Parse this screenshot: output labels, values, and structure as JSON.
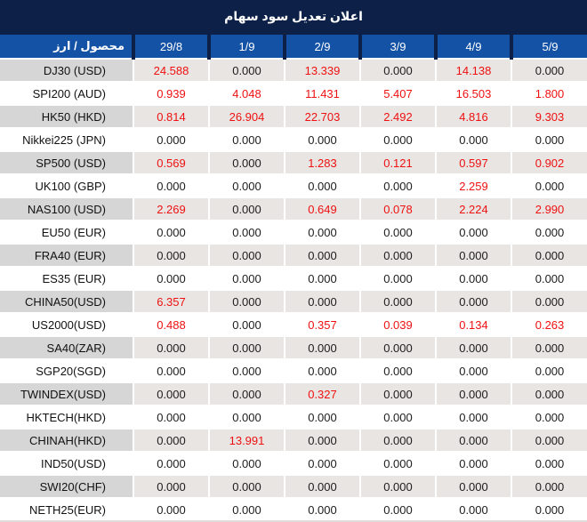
{
  "title": "اعلان تعديل سود سهام",
  "table": {
    "label_header": "محصول / ارز",
    "date_columns": [
      "29/8",
      "1/9",
      "2/9",
      "3/9",
      "4/9",
      "5/9"
    ],
    "value_color_rule": "non-zero values are red, zero values are black",
    "rows": [
      {
        "label": "DJ30 (USD)",
        "values": [
          "24.588",
          "0.000",
          "13.339",
          "0.000",
          "14.138",
          "0.000"
        ]
      },
      {
        "label": "SPI200 (AUD)",
        "values": [
          "0.939",
          "4.048",
          "11.431",
          "5.407",
          "16.503",
          "1.800"
        ]
      },
      {
        "label": "HK50 (HKD)",
        "values": [
          "0.814",
          "26.904",
          "22.703",
          "2.492",
          "4.816",
          "9.303"
        ]
      },
      {
        "label": "Nikkei225 (JPN)",
        "values": [
          "0.000",
          "0.000",
          "0.000",
          "0.000",
          "0.000",
          "0.000"
        ]
      },
      {
        "label": "SP500 (USD)",
        "values": [
          "0.569",
          "0.000",
          "1.283",
          "0.121",
          "0.597",
          "0.902"
        ]
      },
      {
        "label": "UK100 (GBP)",
        "values": [
          "0.000",
          "0.000",
          "0.000",
          "0.000",
          "2.259",
          "0.000"
        ]
      },
      {
        "label": "NAS100 (USD)",
        "values": [
          "2.269",
          "0.000",
          "0.649",
          "0.078",
          "2.224",
          "2.990"
        ]
      },
      {
        "label": "EU50 (EUR)",
        "values": [
          "0.000",
          "0.000",
          "0.000",
          "0.000",
          "0.000",
          "0.000"
        ]
      },
      {
        "label": "FRA40 (EUR)",
        "values": [
          "0.000",
          "0.000",
          "0.000",
          "0.000",
          "0.000",
          "0.000"
        ]
      },
      {
        "label": "ES35 (EUR)",
        "values": [
          "0.000",
          "0.000",
          "0.000",
          "0.000",
          "0.000",
          "0.000"
        ]
      },
      {
        "label": "CHINA50(USD)",
        "values": [
          "6.357",
          "0.000",
          "0.000",
          "0.000",
          "0.000",
          "0.000"
        ]
      },
      {
        "label": "US2000(USD)",
        "values": [
          "0.488",
          "0.000",
          "0.357",
          "0.039",
          "0.134",
          "0.263"
        ]
      },
      {
        "label": "SA40(ZAR)",
        "values": [
          "0.000",
          "0.000",
          "0.000",
          "0.000",
          "0.000",
          "0.000"
        ]
      },
      {
        "label": "SGP20(SGD)",
        "values": [
          "0.000",
          "0.000",
          "0.000",
          "0.000",
          "0.000",
          "0.000"
        ]
      },
      {
        "label": "TWINDEX(USD)",
        "values": [
          "0.000",
          "0.000",
          "0.327",
          "0.000",
          "0.000",
          "0.000"
        ]
      },
      {
        "label": "HKTECH(HKD)",
        "values": [
          "0.000",
          "0.000",
          "0.000",
          "0.000",
          "0.000",
          "0.000"
        ]
      },
      {
        "label": "CHINAH(HKD)",
        "values": [
          "0.000",
          "13.991",
          "0.000",
          "0.000",
          "0.000",
          "0.000"
        ]
      },
      {
        "label": "IND50(USD)",
        "values": [
          "0.000",
          "0.000",
          "0.000",
          "0.000",
          "0.000",
          "0.000"
        ]
      },
      {
        "label": "SWI20(CHF)",
        "values": [
          "0.000",
          "0.000",
          "0.000",
          "0.000",
          "0.000",
          "0.000"
        ]
      },
      {
        "label": "NETH25(EUR)",
        "values": [
          "0.000",
          "0.000",
          "0.000",
          "0.000",
          "0.000",
          "0.000"
        ]
      }
    ]
  },
  "colors": {
    "navy": "#0d2148",
    "header_blue": "#1452a5",
    "value_red": "#ee1111",
    "value_black": "#1c1c1c",
    "gray_row_label_bg": "#d6d6d6",
    "gray_row_data_bg": "#e8e5e2",
    "white_row_bg": "#ffffff",
    "bottom_border": "#e0ddda"
  }
}
